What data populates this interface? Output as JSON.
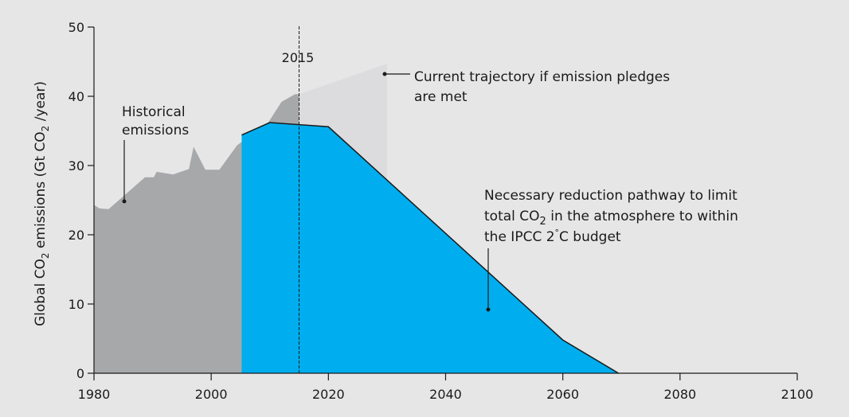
{
  "chart_data": {
    "type": "area",
    "title": "",
    "xlabel": "",
    "ylabel_parts": [
      "Global CO",
      "2",
      " emissions (Gt CO",
      "2",
      " /year)"
    ],
    "xlim": [
      1980,
      2100
    ],
    "ylim": [
      0,
      50
    ],
    "x_ticks": [
      "1980",
      "2000",
      "2020",
      "2040",
      "2060",
      "2080",
      "2100"
    ],
    "y_ticks": [
      "0",
      "10",
      "20",
      "30",
      "40",
      "50"
    ],
    "grid": false,
    "marker_year_label": "2015",
    "marker_year": 2015,
    "colors": {
      "background": "#e6e6e7",
      "historical": "#a7a8aa",
      "trajectory": "#dcdcde",
      "pathway": "#00aeef",
      "line": "#1a1a1a"
    },
    "series": [
      {
        "name": "Historical emissions",
        "x": [
          1980,
          1981,
          1982.5,
          1988.7,
          1990.2,
          1990.7,
          1993.5,
          1996.2,
          1997,
          1999,
          2001.4,
          2004.4,
          2005.2,
          2009.8,
          2012,
          2014.3,
          2015
        ],
        "y": [
          24.3,
          23.8,
          23.7,
          28.3,
          28.3,
          29.1,
          28.7,
          29.5,
          32.7,
          29.4,
          29.4,
          32.9,
          33.4,
          36.3,
          39.2,
          40.3,
          40.3
        ]
      },
      {
        "name": "Current trajectory if emission pledges are met",
        "x": [
          2015,
          2030
        ],
        "y": [
          40.3,
          44.7
        ]
      },
      {
        "name": "Necessary reduction pathway",
        "x": [
          2005.2,
          2010,
          2020,
          2060,
          2069.5
        ],
        "y": [
          34.4,
          36.2,
          35.6,
          4.8,
          0
        ]
      }
    ],
    "annotations": {
      "historical": [
        "Historical",
        "emissions"
      ],
      "trajectory": [
        "Current trajectory if emission pledges",
        "are met"
      ],
      "pathway_line1": "Necessary reduction pathway to limit",
      "pathway_line2_parts": [
        "total CO",
        "2",
        " in the atmosphere to within"
      ],
      "pathway_line3_parts": [
        "the IPCC 2",
        "°",
        "C budget"
      ]
    }
  }
}
